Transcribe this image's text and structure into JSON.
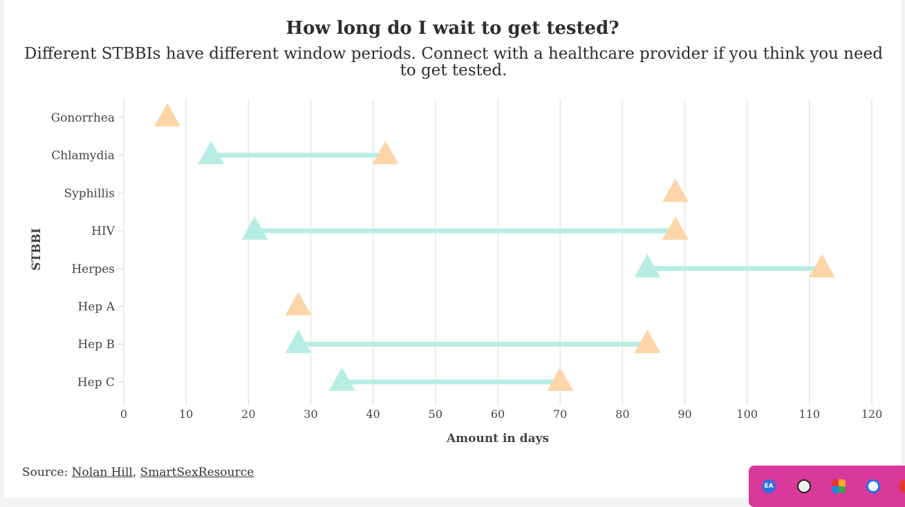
{
  "header": {
    "title": "How long do I wait to get tested?",
    "subtitle": "Different STBBIs have different window periods. Connect with a healthcare provider if you think you need to get tested."
  },
  "source": {
    "prefix": "Source: ",
    "link1": "Nolan Hill",
    "separator": ", ",
    "link2": "SmartSexResource"
  },
  "taskbar": {
    "icons": [
      "ea-icon",
      "user-avatar-icon",
      "colorful-app-icon",
      "grammarly-icon",
      "red-app-icon"
    ],
    "ea_label": "EA"
  },
  "chart_data": {
    "type": "dumbbell",
    "xlabel": "Amount in days",
    "ylabel": "STBBI",
    "xlim": [
      0,
      120
    ],
    "xticks": [
      0,
      10,
      20,
      30,
      40,
      50,
      60,
      70,
      80,
      90,
      100,
      110,
      120
    ],
    "grid": true,
    "categories": [
      "Gonorrhea",
      "Chlamydia",
      "Syphillis",
      "HIV",
      "Herpes",
      "Hep A",
      "Hep B",
      "Hep C"
    ],
    "start": [
      null,
      14,
      null,
      21,
      84,
      null,
      28,
      35
    ],
    "end": [
      7,
      42,
      88.5,
      88.5,
      112,
      28,
      84,
      70
    ],
    "colors": {
      "start": "#b8ede4",
      "end": "#fdd5a9",
      "line": "#b8ede4",
      "grid": "#e6e6e6"
    }
  }
}
